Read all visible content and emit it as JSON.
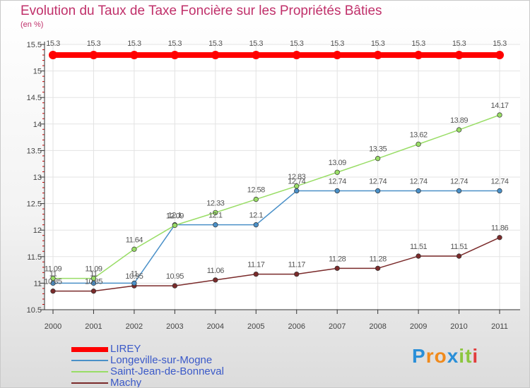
{
  "title": "Evolution du Taux de Taxe Foncière sur les Propriétés Bâties",
  "subtitle": "(en %)",
  "logo_text": "Proxiti",
  "chart_data": {
    "type": "line",
    "title": "Evolution du Taux de Taxe Foncière sur les Propriétés Bâties",
    "ylabel": "(en %)",
    "x": [
      "2000",
      "2001",
      "2002",
      "2003",
      "2004",
      "2005",
      "2006",
      "2007",
      "2008",
      "2009",
      "2010",
      "2011"
    ],
    "ylim": [
      10.5,
      15.5
    ],
    "yticks": [
      "10.5",
      "11",
      "11.5",
      "12",
      "12.5",
      "13",
      "13.5",
      "14",
      "14.5",
      "15",
      "15.5"
    ],
    "legend_position": "bottom-left",
    "series": [
      {
        "name": "LIREY",
        "color": "#ff0000",
        "values": [
          15.3,
          15.3,
          15.3,
          15.3,
          15.3,
          15.3,
          15.3,
          15.3,
          15.3,
          15.3,
          15.3,
          15.3
        ],
        "labels": [
          "15.3",
          "15.3",
          "15.3",
          "15.3",
          "15.3",
          "15.3",
          "15.3",
          "15.3",
          "15.3",
          "15.3",
          "15.3",
          "15.3"
        ]
      },
      {
        "name": "Longeville-sur-Mogne",
        "color": "#4a90c8",
        "values": [
          11,
          11,
          11,
          12.1,
          12.1,
          12.1,
          12.74,
          12.74,
          12.74,
          12.74,
          12.74,
          12.74
        ],
        "labels": [
          "11",
          "11",
          "11",
          "12.1",
          "12.1",
          "12.1",
          "12.74",
          "12.74",
          "12.74",
          "12.74",
          "12.74",
          "12.74"
        ]
      },
      {
        "name": "Saint-Jean-de-Bonneval",
        "color": "#99dd66",
        "values": [
          11.09,
          11.09,
          11.64,
          12.09,
          12.33,
          12.58,
          12.83,
          13.09,
          13.35,
          13.62,
          13.89,
          14.17
        ],
        "labels": [
          "11.09",
          "11.09",
          "11.64",
          "12.09",
          "12.33",
          "12.58",
          "12.83",
          "13.09",
          "13.35",
          "13.62",
          "13.89",
          "14.17"
        ]
      },
      {
        "name": "Machy",
        "color": "#7a2a2a",
        "values": [
          10.85,
          10.85,
          10.95,
          10.95,
          11.06,
          11.17,
          11.17,
          11.28,
          11.28,
          11.51,
          11.51,
          11.86
        ],
        "labels": [
          "10.85",
          "10.85",
          "10.95",
          "10.95",
          "11.06",
          "11.17",
          "11.17",
          "11.28",
          "11.28",
          "11.51",
          "11.51",
          "11.86"
        ]
      }
    ]
  }
}
